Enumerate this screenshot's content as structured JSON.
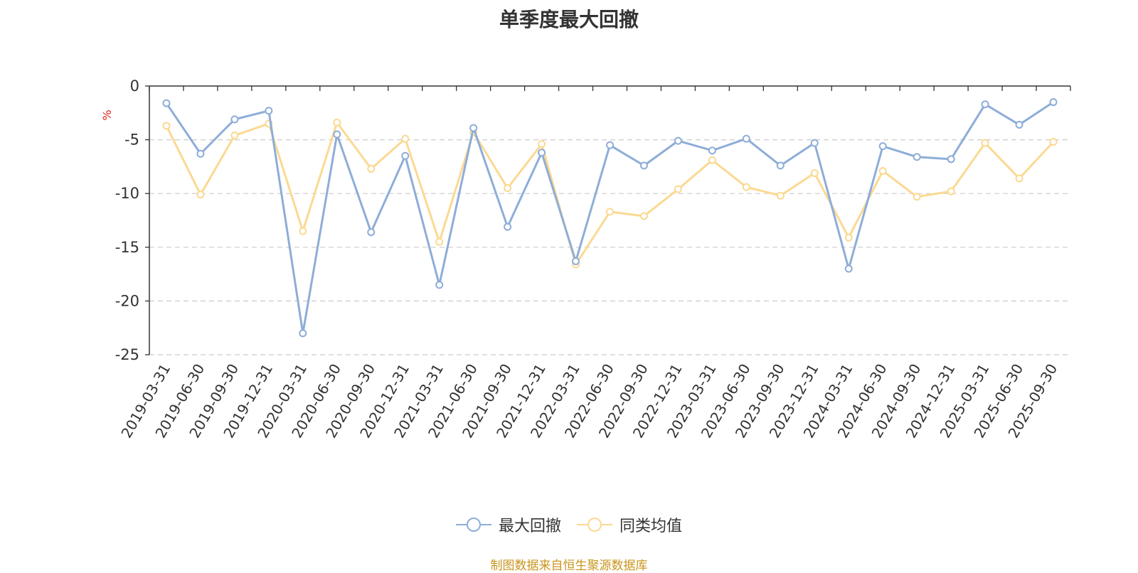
{
  "chart_data": {
    "type": "line",
    "title": "单季度最大回撤",
    "ylabel": "%",
    "ylim": [
      -25,
      0
    ],
    "yticks": [
      0,
      -5,
      -10,
      -15,
      -20,
      -25
    ],
    "grid": true,
    "legend_position": "bottom-center",
    "categories": [
      "2019-03-31",
      "2019-06-30",
      "2019-09-30",
      "2019-12-31",
      "2020-03-31",
      "2020-06-30",
      "2020-09-30",
      "2020-12-31",
      "2021-03-31",
      "2021-06-30",
      "2021-09-30",
      "2021-12-31",
      "2022-03-31",
      "2022-06-30",
      "2022-09-30",
      "2022-12-31",
      "2023-03-31",
      "2023-06-30",
      "2023-09-30",
      "2023-12-31",
      "2024-03-31",
      "2024-06-30",
      "2024-09-30",
      "2024-12-31",
      "2025-03-31",
      "2025-06-30",
      "2025-09-30"
    ],
    "series": [
      {
        "name": "最大回撤",
        "color": "#8eadd8",
        "values": [
          -1.6,
          -6.3,
          -3.1,
          -2.3,
          -23.0,
          -4.5,
          -13.6,
          -6.5,
          -18.5,
          -3.9,
          -13.1,
          -6.2,
          -16.3,
          -5.5,
          -7.4,
          -5.1,
          -6.0,
          -4.9,
          -7.4,
          -5.3,
          -17.0,
          -5.6,
          -6.6,
          -6.8,
          -1.7,
          -3.6,
          -1.5
        ]
      },
      {
        "name": "同类均值",
        "color": "#fbd992",
        "values": [
          -3.7,
          -10.1,
          -4.6,
          -3.5,
          -13.5,
          -3.4,
          -7.7,
          -4.9,
          -14.5,
          -4.3,
          -9.5,
          -5.4,
          -16.6,
          -11.7,
          -12.1,
          -9.6,
          -6.9,
          -9.4,
          -10.2,
          -8.1,
          -14.1,
          -7.9,
          -10.3,
          -9.8,
          -5.3,
          -8.6,
          -5.2
        ]
      }
    ]
  },
  "source_text": "制图数据来自恒生聚源数据库",
  "colors": {
    "source_text": "#c8961e",
    "ylabel": "#e02020",
    "axis": "#333333",
    "grid": "#cccccc"
  }
}
